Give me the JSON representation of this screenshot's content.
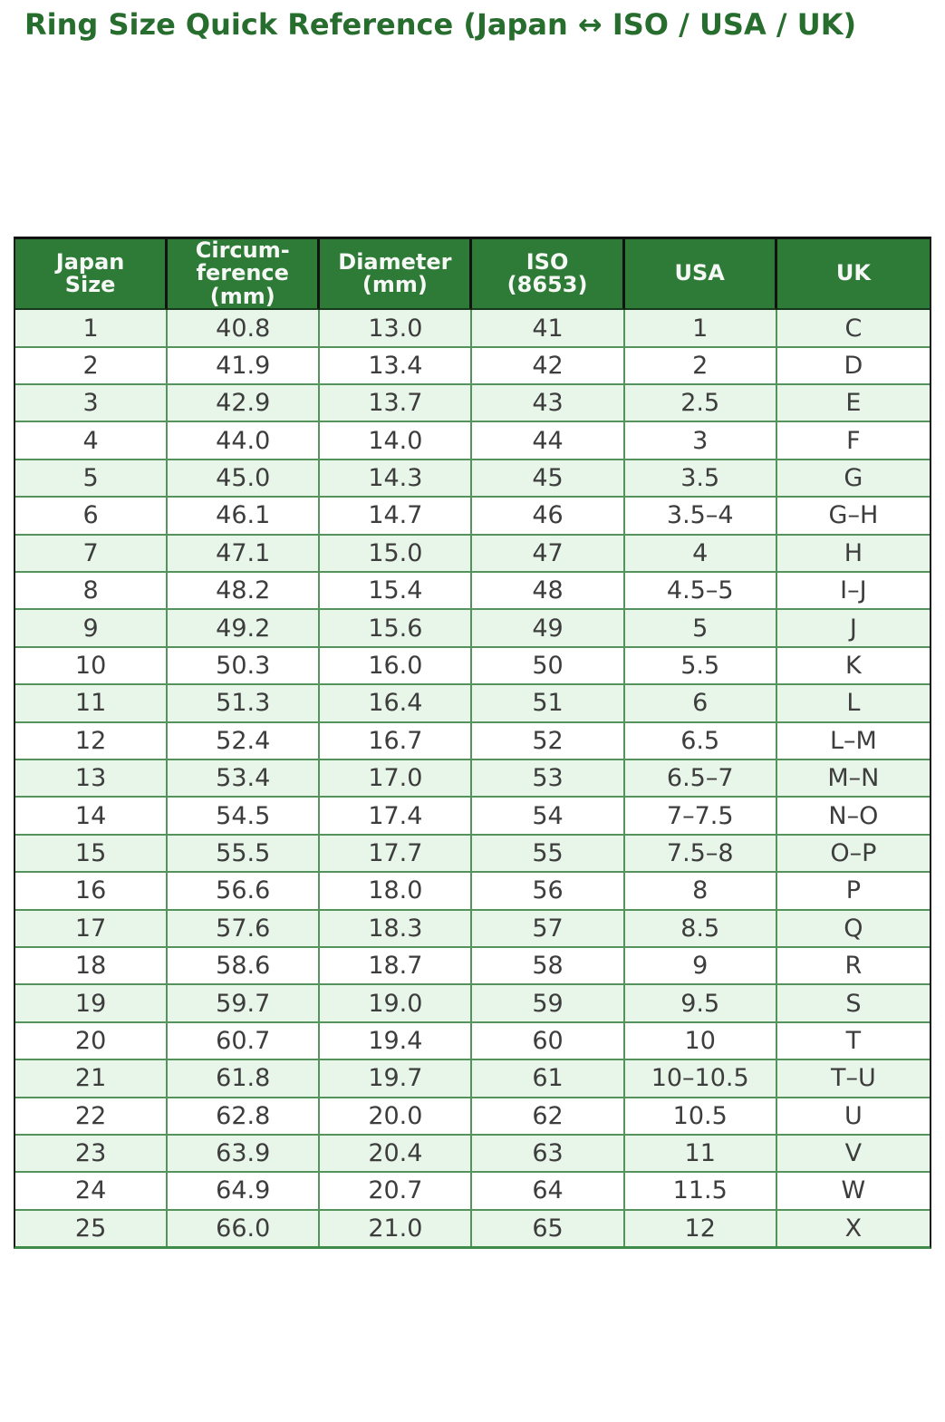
{
  "page": {
    "title": "Ring Size Quick Reference (Japan ↔ ISO / USA / UK)"
  },
  "colors": {
    "title_text": "#266d2e",
    "header_bg": "#2e7a37",
    "header_text": "#f5f8f5",
    "row_alt_bg": "#e8f5e9",
    "row_bg": "#ffffff",
    "grid_line": "#54945c",
    "frame_line": "#121212",
    "body_text": "#3d3d3d"
  },
  "header": {
    "display_lines": [
      "Japan\nSize",
      "Circum-\nference\n(mm)",
      "Diameter\n(mm)",
      "ISO\n(8653)",
      "USA",
      "UK"
    ]
  },
  "chart_data": {
    "type": "table",
    "title": "Ring Size Quick Reference (Japan ↔ ISO / USA / UK)",
    "columns": [
      "Japan Size",
      "Circumference (mm)",
      "Diameter (mm)",
      "ISO (8653)",
      "USA",
      "UK"
    ],
    "rows": [
      [
        "1",
        "40.8",
        "13.0",
        "41",
        "1",
        "C"
      ],
      [
        "2",
        "41.9",
        "13.4",
        "42",
        "2",
        "D"
      ],
      [
        "3",
        "42.9",
        "13.7",
        "43",
        "2.5",
        "E"
      ],
      [
        "4",
        "44.0",
        "14.0",
        "44",
        "3",
        "F"
      ],
      [
        "5",
        "45.0",
        "14.3",
        "45",
        "3.5",
        "G"
      ],
      [
        "6",
        "46.1",
        "14.7",
        "46",
        "3.5–4",
        "G–H"
      ],
      [
        "7",
        "47.1",
        "15.0",
        "47",
        "4",
        "H"
      ],
      [
        "8",
        "48.2",
        "15.4",
        "48",
        "4.5–5",
        "I–J"
      ],
      [
        "9",
        "49.2",
        "15.6",
        "49",
        "5",
        "J"
      ],
      [
        "10",
        "50.3",
        "16.0",
        "50",
        "5.5",
        "K"
      ],
      [
        "11",
        "51.3",
        "16.4",
        "51",
        "6",
        "L"
      ],
      [
        "12",
        "52.4",
        "16.7",
        "52",
        "6.5",
        "L–M"
      ],
      [
        "13",
        "53.4",
        "17.0",
        "53",
        "6.5–7",
        "M–N"
      ],
      [
        "14",
        "54.5",
        "17.4",
        "54",
        "7–7.5",
        "N–O"
      ],
      [
        "15",
        "55.5",
        "17.7",
        "55",
        "7.5–8",
        "O–P"
      ],
      [
        "16",
        "56.6",
        "18.0",
        "56",
        "8",
        "P"
      ],
      [
        "17",
        "57.6",
        "18.3",
        "57",
        "8.5",
        "Q"
      ],
      [
        "18",
        "58.6",
        "18.7",
        "58",
        "9",
        "R"
      ],
      [
        "19",
        "59.7",
        "19.0",
        "59",
        "9.5",
        "S"
      ],
      [
        "20",
        "60.7",
        "19.4",
        "60",
        "10",
        "T"
      ],
      [
        "21",
        "61.8",
        "19.7",
        "61",
        "10–10.5",
        "T–U"
      ],
      [
        "22",
        "62.8",
        "20.0",
        "62",
        "10.5",
        "U"
      ],
      [
        "23",
        "63.9",
        "20.4",
        "63",
        "11",
        "V"
      ],
      [
        "24",
        "64.9",
        "20.7",
        "64",
        "11.5",
        "W"
      ],
      [
        "25",
        "66.0",
        "21.0",
        "65",
        "12",
        "X"
      ]
    ]
  }
}
